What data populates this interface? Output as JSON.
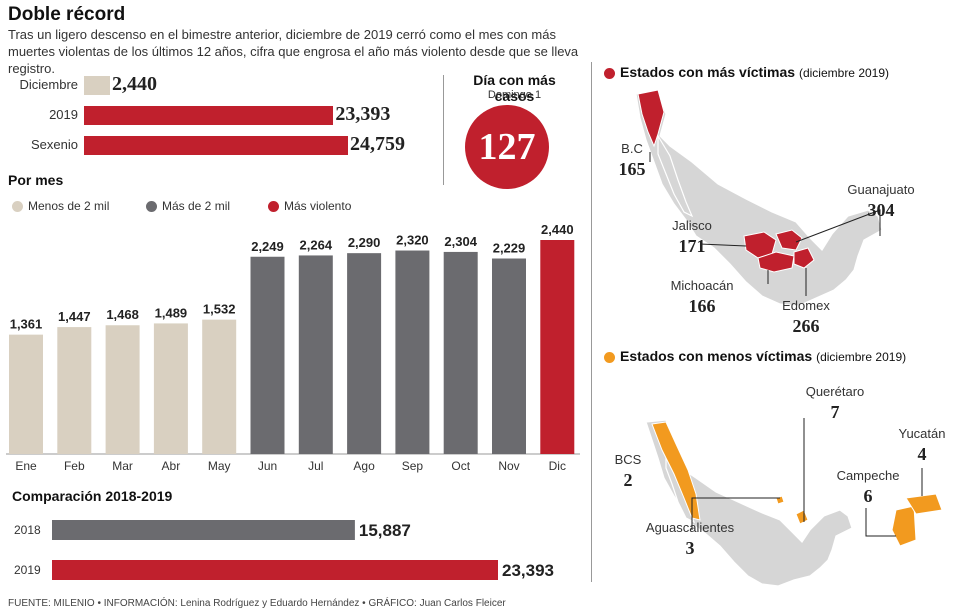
{
  "header": {
    "title": "Doble récord",
    "subtitle": "Tras un ligero descenso en el bimestre anterior, diciembre de 2019 cerró como el mes con más muertes violentas de los últimos 12 años, cifra que engrosa el año más violento desde que se lleva registro."
  },
  "summary": {
    "rows": [
      {
        "label": "Diciembre",
        "value": 2440,
        "display": "2,440",
        "color": "#d9d0c1"
      },
      {
        "label": "2019",
        "value": 23393,
        "display": "23,393",
        "color": "#c0202d"
      },
      {
        "label": "Sexenio",
        "value": 24759,
        "display": "24,759",
        "color": "#c0202d"
      }
    ]
  },
  "max_day": {
    "title": "Día con más casos",
    "subtitle": "Domingo 1",
    "value": "127"
  },
  "monthly": {
    "title": "Por mes",
    "legend": [
      {
        "label": "Menos de 2 mil",
        "color": "#d9d0c1"
      },
      {
        "label": "Más de 2 mil",
        "color": "#6b6b6f"
      },
      {
        "label": "Más violento",
        "color": "#c0202d"
      }
    ]
  },
  "chart_data": [
    {
      "type": "bar",
      "title": "Por mes",
      "categories": [
        "Ene",
        "Feb",
        "Mar",
        "Abr",
        "May",
        "Jun",
        "Jul",
        "Ago",
        "Sep",
        "Oct",
        "Nov",
        "Dic"
      ],
      "values": [
        1361,
        1447,
        1468,
        1489,
        1532,
        2249,
        2264,
        2290,
        2320,
        2304,
        2229,
        2440
      ],
      "labels": [
        "1,361",
        "1,447",
        "1,468",
        "1,489",
        "1,532",
        "2,249",
        "2,264",
        "2,290",
        "2,320",
        "2,304",
        "2,229",
        "2,440"
      ],
      "colors": [
        "#d9d0c1",
        "#d9d0c1",
        "#d9d0c1",
        "#d9d0c1",
        "#d9d0c1",
        "#6b6b6f",
        "#6b6b6f",
        "#6b6b6f",
        "#6b6b6f",
        "#6b6b6f",
        "#6b6b6f",
        "#c0202d"
      ],
      "ylim": [
        0,
        2440
      ]
    },
    {
      "type": "bar",
      "orientation": "horizontal",
      "title": "Comparación 2018-2019",
      "categories": [
        "2018",
        "2019"
      ],
      "values": [
        15887,
        23393
      ],
      "labels": [
        "15,887",
        "23,393"
      ],
      "colors": [
        "#6b6b6f",
        "#c0202d"
      ],
      "xlim": [
        0,
        23393
      ]
    }
  ],
  "map_most": {
    "title": "Estados con más víctimas",
    "note": "(diciembre 2019)",
    "color": "#c0202d",
    "states": [
      {
        "name": "B.C",
        "value": "165"
      },
      {
        "name": "Guanajuato",
        "value": "304"
      },
      {
        "name": "Jalisco",
        "value": "171"
      },
      {
        "name": "Michoacán",
        "value": "166"
      },
      {
        "name": "Edomex",
        "value": "266"
      }
    ]
  },
  "map_least": {
    "title": "Estados con menos víctimas",
    "note": "(diciembre 2019)",
    "color": "#f29a1f",
    "states": [
      {
        "name": "Querétaro",
        "value": "7"
      },
      {
        "name": "Yucatán",
        "value": "4"
      },
      {
        "name": "BCS",
        "value": "2"
      },
      {
        "name": "Campeche",
        "value": "6"
      },
      {
        "name": "Aguascalientes",
        "value": "3"
      }
    ]
  },
  "footer": "FUENTE: MILENIO • INFORMACIÓN: Lenina Rodríguez y Eduardo Hernández • GRÁFICO: Juan Carlos Fleicer"
}
